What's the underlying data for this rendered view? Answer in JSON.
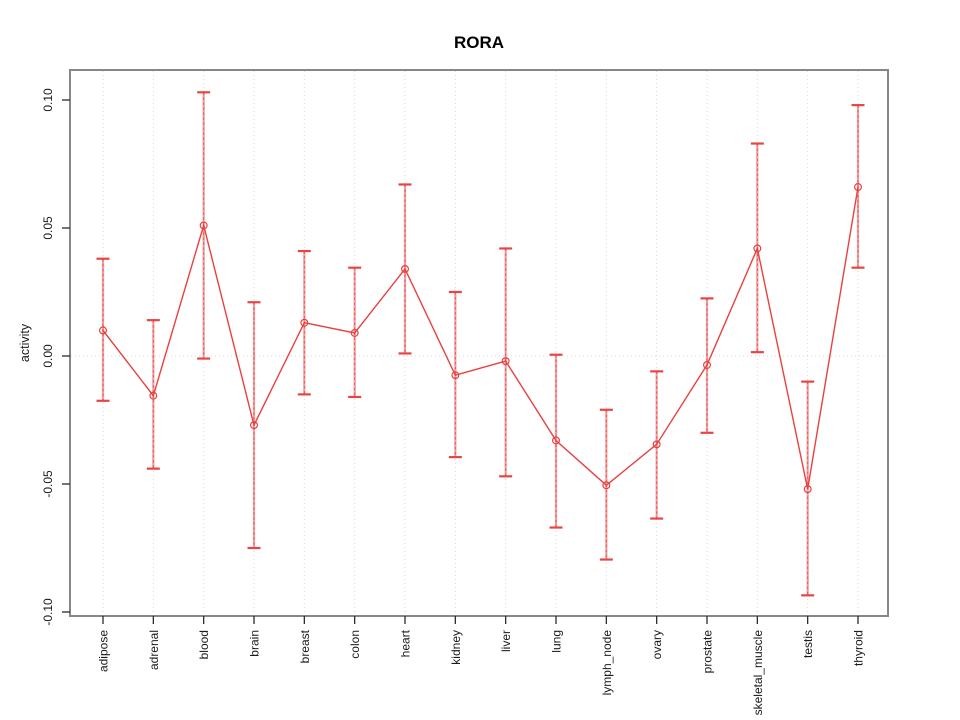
{
  "chart_data": {
    "type": "line",
    "title": "RORA",
    "xlabel": "",
    "ylabel": "activity",
    "legend_position": "none",
    "marker": "open-circle",
    "error_bars": true,
    "ylim": [
      -0.1,
      0.1
    ],
    "y_ticks": [
      0.1,
      0.05,
      0.0,
      -0.05,
      -0.1
    ],
    "grid": {
      "vertical_dotted_per_category": true,
      "horizontal_dotted_zero_line": true
    },
    "categories": [
      "adipose",
      "adrenal",
      "blood",
      "brain",
      "breast",
      "colon",
      "heart",
      "kidney",
      "liver",
      "lung",
      "lymph_node",
      "ovary",
      "prostate",
      "skeletal_muscle",
      "testis",
      "thyroid"
    ],
    "series": [
      {
        "name": "RORA activity",
        "values": [
          0.01,
          -0.0155,
          0.051,
          -0.027,
          0.013,
          0.009,
          0.034,
          -0.0075,
          -0.002,
          -0.033,
          -0.0505,
          -0.0345,
          -0.0035,
          0.042,
          -0.052,
          0.066
        ],
        "upper": [
          0.038,
          0.014,
          0.103,
          0.021,
          0.041,
          0.0345,
          0.067,
          0.025,
          0.042,
          0.0005,
          -0.021,
          -0.006,
          0.0225,
          0.083,
          -0.01,
          0.098
        ],
        "lower": [
          -0.0175,
          -0.044,
          -0.001,
          -0.075,
          -0.015,
          -0.016,
          0.001,
          -0.0395,
          -0.047,
          -0.067,
          -0.0795,
          -0.0635,
          -0.03,
          0.0015,
          -0.0935,
          0.0345
        ]
      }
    ],
    "colors": {
      "line": "#e94040",
      "marker": "#e94040",
      "error_bar_line": "#f29e9e",
      "error_bar_cap": "#e84444",
      "grid": "#d7d7d7",
      "box": "#878787",
      "tick": "#2b2b2b",
      "tick_text": "#1a1a1a",
      "title_text": "#000000"
    }
  }
}
